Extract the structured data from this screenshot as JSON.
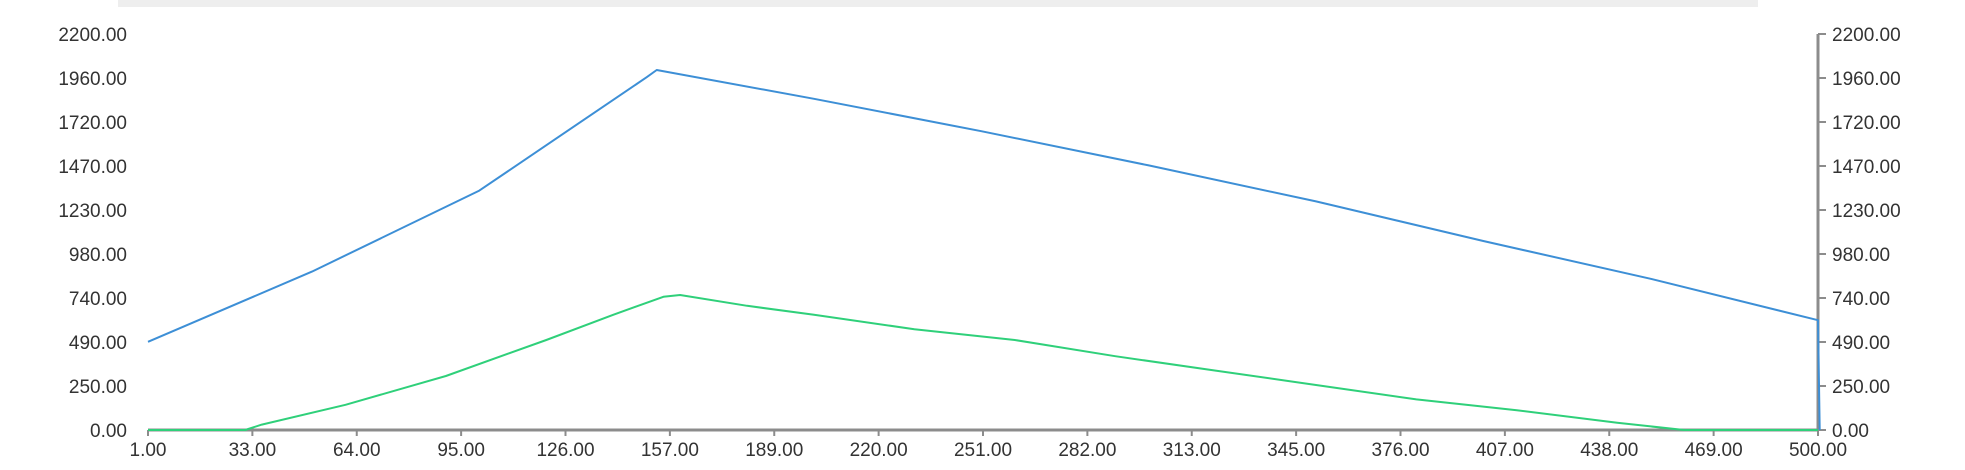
{
  "chart_data": {
    "type": "line",
    "title": "",
    "xlabel": "",
    "ylabel": "",
    "x_ticks": [
      "1.00",
      "33.00",
      "64.00",
      "95.00",
      "126.00",
      "157.00",
      "189.00",
      "220.00",
      "251.00",
      "282.00",
      "313.00",
      "345.00",
      "376.00",
      "407.00",
      "438.00",
      "469.00",
      "500.00"
    ],
    "y_ticks_left": [
      "0.00",
      "250.00",
      "490.00",
      "740.00",
      "980.00",
      "1230.00",
      "1470.00",
      "1720.00",
      "1960.00",
      "2200.00"
    ],
    "y_ticks_right": [
      "0.00",
      "250.00",
      "490.00",
      "740.00",
      "980.00",
      "1230.00",
      "1470.00",
      "1720.00",
      "1960.00",
      "2200.00"
    ],
    "xlim": [
      1,
      500
    ],
    "ylim": [
      0,
      2200
    ],
    "grid": false,
    "series": [
      {
        "color": "#3d8fd6",
        "points": [
          [
            1,
            490
          ],
          [
            50,
            880
          ],
          [
            100,
            1330
          ],
          [
            150,
            1960
          ],
          [
            153,
            2000
          ],
          [
            200,
            1840
          ],
          [
            250,
            1660
          ],
          [
            300,
            1470
          ],
          [
            350,
            1270
          ],
          [
            400,
            1050
          ],
          [
            450,
            840
          ],
          [
            500,
            610
          ],
          [
            500.5,
            0
          ]
        ]
      },
      {
        "color": "#2fd07a",
        "points": [
          [
            1,
            0
          ],
          [
            30,
            0
          ],
          [
            35,
            30
          ],
          [
            60,
            140
          ],
          [
            90,
            300
          ],
          [
            120,
            500
          ],
          [
            140,
            640
          ],
          [
            155,
            740
          ],
          [
            160,
            750
          ],
          [
            180,
            690
          ],
          [
            200,
            640
          ],
          [
            230,
            560
          ],
          [
            260,
            500
          ],
          [
            290,
            410
          ],
          [
            320,
            330
          ],
          [
            350,
            250
          ],
          [
            380,
            170
          ],
          [
            410,
            110
          ],
          [
            440,
            40
          ],
          [
            460,
            0
          ],
          [
            500,
            0
          ]
        ]
      }
    ]
  }
}
